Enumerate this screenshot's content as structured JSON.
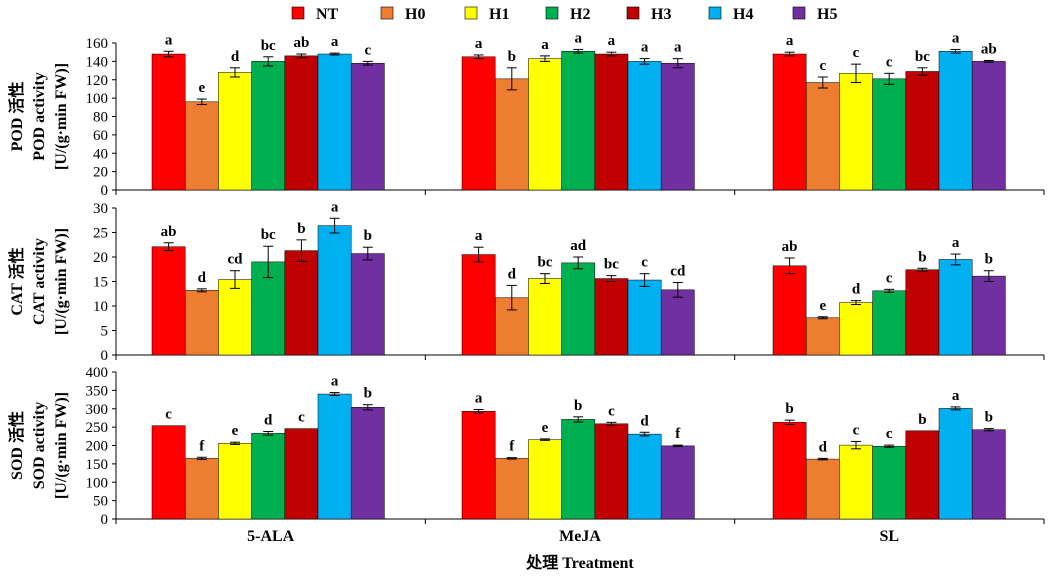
{
  "chart_data": {
    "type": "bar",
    "categories": [
      "5-ALA",
      "MeJA",
      "SL"
    ],
    "xlabel": "处理 Treatment",
    "legend_position": "top",
    "series_names": [
      "NT",
      "H0",
      "H1",
      "H2",
      "H3",
      "H4",
      "H5"
    ],
    "colors": [
      "#ff0000",
      "#ed7d31",
      "#ffff00",
      "#00b050",
      "#c00000",
      "#00b0f0",
      "#7030a0"
    ],
    "panels": [
      {
        "ylabel": [
          "POD 活性",
          "POD activity",
          "[U/(g·min FW)]"
        ],
        "ylim": [
          0,
          160
        ],
        "yticks": [
          0,
          20,
          40,
          60,
          80,
          100,
          120,
          140,
          160
        ],
        "values": [
          [
            148,
            96,
            128,
            140,
            146,
            148,
            138
          ],
          [
            145,
            121,
            143,
            151,
            148,
            140,
            138
          ],
          [
            148,
            117,
            127,
            121,
            129,
            151,
            140
          ]
        ],
        "errors": [
          [
            3,
            3,
            5,
            5,
            2,
            1,
            2
          ],
          [
            2,
            12,
            3,
            2,
            2,
            3,
            5
          ],
          [
            2,
            6,
            10,
            6,
            4,
            2,
            1
          ]
        ],
        "letters": [
          [
            "a",
            "e",
            "d",
            "bc",
            "ab",
            "a",
            "c"
          ],
          [
            "a",
            "b",
            "a",
            "a",
            "a",
            "a",
            "a"
          ],
          [
            "a",
            "c",
            "c",
            "c",
            "bc",
            "a",
            "ab"
          ]
        ]
      },
      {
        "ylabel": [
          "CAT 活性",
          "CAT activity",
          "[U/(g·min FW)]"
        ],
        "ylim": [
          0,
          30
        ],
        "yticks": [
          0,
          5,
          10,
          15,
          20,
          25,
          30
        ],
        "values": [
          [
            22.1,
            13.2,
            15.4,
            19.0,
            21.3,
            26.4,
            20.7
          ],
          [
            20.5,
            11.7,
            15.6,
            18.8,
            15.6,
            15.3,
            13.3
          ],
          [
            18.2,
            7.6,
            10.7,
            13.1,
            17.4,
            19.5,
            16.1
          ]
        ],
        "errors": [
          [
            0.8,
            0.3,
            1.8,
            3.2,
            2.2,
            1.5,
            1.3
          ],
          [
            1.5,
            2.5,
            1.0,
            1.2,
            0.6,
            1.3,
            1.5
          ],
          [
            1.6,
            0.2,
            0.4,
            0.3,
            0.3,
            1.1,
            1.1
          ]
        ],
        "letters": [
          [
            "ab",
            "d",
            "cd",
            "bc",
            "b",
            "a",
            "b"
          ],
          [
            "a",
            "d",
            "bc",
            "ad",
            "bc",
            "c",
            "cd"
          ],
          [
            "ab",
            "e",
            "d",
            "c",
            "b",
            "a",
            "b"
          ]
        ]
      },
      {
        "ylabel": [
          "SOD 活性",
          "SOD activity",
          "[U/(g·min FW)]"
        ],
        "ylim": [
          0,
          400
        ],
        "yticks": [
          0,
          50,
          100,
          150,
          200,
          250,
          300,
          350,
          400
        ],
        "values": [
          [
            254,
            165,
            206,
            233,
            246,
            340,
            304
          ],
          [
            293,
            165,
            216,
            271,
            259,
            231,
            199
          ],
          [
            263,
            163,
            201,
            198,
            240,
            301,
            243
          ]
        ],
        "errors": [
          [
            0,
            3,
            3,
            5,
            0,
            4,
            7
          ],
          [
            5,
            2,
            2,
            7,
            4,
            5,
            2
          ],
          [
            6,
            2,
            10,
            3,
            0,
            4,
            3
          ]
        ],
        "letters": [
          [
            "c",
            "f",
            "e",
            "d",
            "c",
            "a",
            "b"
          ],
          [
            "a",
            "f",
            "e",
            "b",
            "c",
            "d",
            "f"
          ],
          [
            "b",
            "d",
            "c",
            "c",
            "b",
            "a",
            "b"
          ]
        ]
      }
    ]
  }
}
